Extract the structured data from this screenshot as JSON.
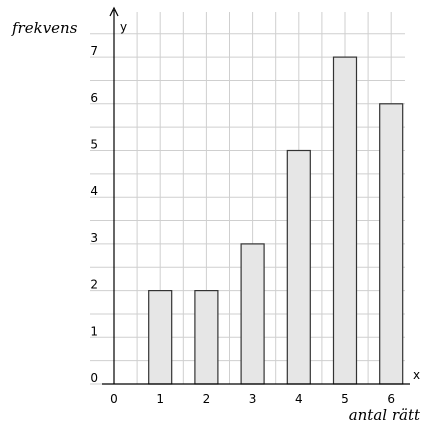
{
  "chart_data": {
    "type": "bar",
    "categories": [
      "1",
      "2",
      "3",
      "4",
      "5",
      "6"
    ],
    "x": [
      1,
      2,
      3,
      4,
      5,
      6
    ],
    "values": [
      2,
      2,
      3,
      5,
      7,
      6
    ],
    "xlabel": "antal rätt",
    "ylabel": "frekvens",
    "x_axis_letter": "x",
    "y_axis_letter": "y",
    "origin_label": "0",
    "xlim": [
      0,
      6.6
    ],
    "ylim": [
      0,
      7.5
    ],
    "x_ticks": [
      0,
      1,
      2,
      3,
      4,
      5,
      6
    ],
    "y_ticks": [
      0,
      1,
      2,
      3,
      4,
      5,
      6,
      7
    ],
    "grid": true,
    "bar_fill": "#e6e6e6",
    "bar_stroke": "#333333",
    "grid_color": "#cfcfcf"
  }
}
